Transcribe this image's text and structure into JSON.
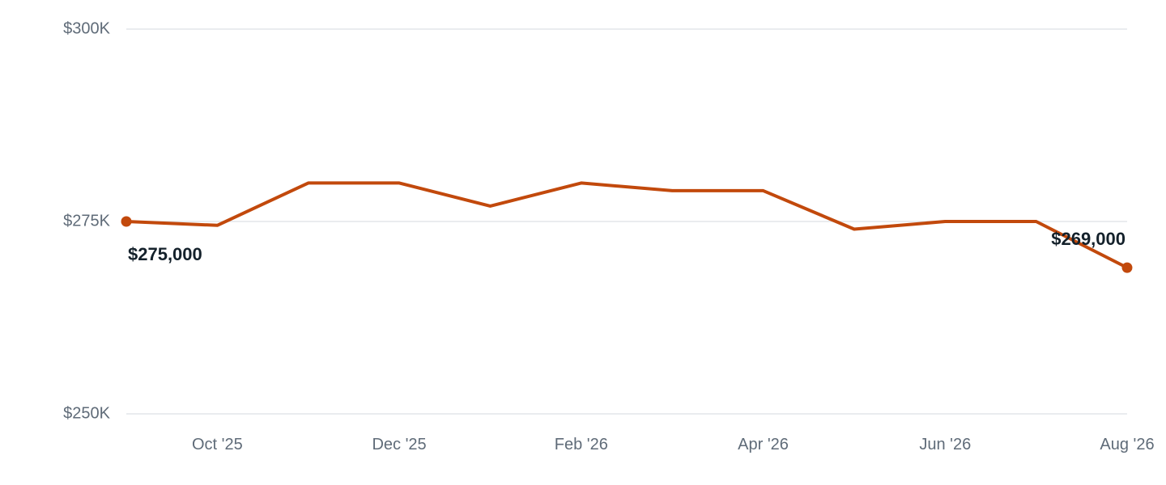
{
  "chart_data": {
    "type": "line",
    "x": [
      "2025-09",
      "2025-10",
      "2025-11",
      "2025-12",
      "2026-01",
      "2026-02",
      "2026-03",
      "2026-04",
      "2026-05",
      "2026-06",
      "2026-07",
      "2026-08"
    ],
    "series": [
      {
        "values": [
          275000,
          274500,
          280000,
          280000,
          277000,
          280000,
          279000,
          279000,
          274000,
          275000,
          275000,
          269000
        ]
      }
    ],
    "ylim": [
      250000,
      300000
    ],
    "y_ticks": [
      {
        "value": 300000,
        "label": "$300K"
      },
      {
        "value": 275000,
        "label": "$275K"
      },
      {
        "value": 250000,
        "label": "$250K"
      }
    ],
    "x_ticks": [
      {
        "index": 1,
        "label": "Oct '25"
      },
      {
        "index": 3,
        "label": "Dec '25"
      },
      {
        "index": 5,
        "label": "Feb '26"
      },
      {
        "index": 7,
        "label": "Apr '26"
      },
      {
        "index": 9,
        "label": "Jun '26"
      },
      {
        "index": 11,
        "label": "Aug '26"
      }
    ],
    "data_labels": [
      {
        "index": 0,
        "label": "$275,000"
      },
      {
        "index": 11,
        "label": "$269,000"
      }
    ],
    "grid": true,
    "legend": "none",
    "colors": {
      "line": "#c2490c",
      "grid": "#e3e6ea",
      "tick_text": "#5f6b78",
      "label_text": "#14212b"
    }
  }
}
